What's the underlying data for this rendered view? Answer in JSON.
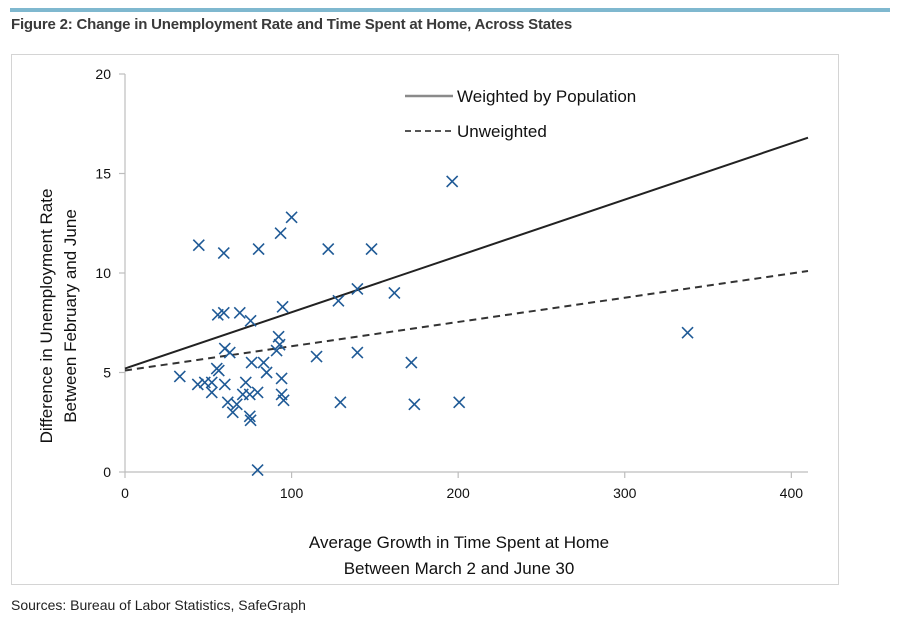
{
  "figure": {
    "title": "Figure 2: Change in Unemployment Rate and Time Spent at Home, Across States",
    "source": "Sources: Bureau of Labor Statistics, SafeGraph",
    "accent_color": "#7fb8cf",
    "marker_color": "#1f5a96",
    "line_color": "#222222"
  },
  "chart_data": {
    "type": "scatter",
    "title": "Figure 2: Change in Unemployment Rate and Time Spent at Home, Across States",
    "xlabel": [
      "Average Growth in Time Spent at Home",
      "Between March 2 and June 30"
    ],
    "ylabel": [
      "Difference in Unemployment Rate",
      "Between February and June"
    ],
    "xlim": [
      0,
      410
    ],
    "ylim": [
      0,
      20
    ],
    "xticks": [
      0,
      100,
      200,
      300,
      400
    ],
    "yticks": [
      0,
      5,
      10,
      15,
      20
    ],
    "grid": false,
    "legend_position": "top-center",
    "marker": "x",
    "points": [
      [
        44.3,
        11.4
      ],
      [
        59.3,
        11.0
      ],
      [
        80.2,
        11.2
      ],
      [
        93.4,
        12.0
      ],
      [
        100.0,
        12.8
      ],
      [
        122.0,
        11.2
      ],
      [
        148.0,
        11.2
      ],
      [
        196.4,
        14.6
      ],
      [
        139.5,
        9.2
      ],
      [
        161.7,
        9.0
      ],
      [
        128.1,
        8.6
      ],
      [
        55.7,
        7.9
      ],
      [
        59.3,
        8.0
      ],
      [
        68.9,
        8.0
      ],
      [
        75.4,
        7.6
      ],
      [
        94.6,
        8.3
      ],
      [
        92.8,
        6.4
      ],
      [
        91.0,
        6.1
      ],
      [
        92.2,
        6.8
      ],
      [
        59.9,
        6.2
      ],
      [
        62.9,
        6.0
      ],
      [
        55.1,
        5.2
      ],
      [
        56.3,
        5.1
      ],
      [
        76.0,
        5.5
      ],
      [
        83.2,
        5.5
      ],
      [
        85.0,
        5.0
      ],
      [
        94.0,
        4.7
      ],
      [
        115.0,
        5.8
      ],
      [
        139.5,
        6.0
      ],
      [
        171.9,
        5.5
      ],
      [
        337.7,
        7.0
      ],
      [
        32.9,
        4.8
      ],
      [
        43.7,
        4.4
      ],
      [
        47.9,
        4.5
      ],
      [
        52.1,
        4.5
      ],
      [
        52.1,
        4.0
      ],
      [
        59.9,
        4.4
      ],
      [
        72.5,
        4.5
      ],
      [
        70.7,
        3.9
      ],
      [
        74.9,
        3.9
      ],
      [
        79.6,
        4.0
      ],
      [
        94.0,
        3.9
      ],
      [
        95.2,
        3.6
      ],
      [
        61.7,
        3.5
      ],
      [
        67.1,
        3.4
      ],
      [
        64.7,
        3.0
      ],
      [
        74.9,
        2.8
      ],
      [
        75.4,
        2.6
      ],
      [
        129.3,
        3.5
      ],
      [
        173.7,
        3.4
      ],
      [
        200.6,
        3.5
      ],
      [
        79.6,
        0.1
      ]
    ],
    "series": [
      {
        "name": "Weighted by Population",
        "style": "solid",
        "x": [
          0,
          410
        ],
        "y": [
          5.2,
          16.8
        ]
      },
      {
        "name": "Unweighted",
        "style": "dashed",
        "x": [
          0,
          410
        ],
        "y": [
          5.1,
          10.1
        ]
      }
    ]
  }
}
